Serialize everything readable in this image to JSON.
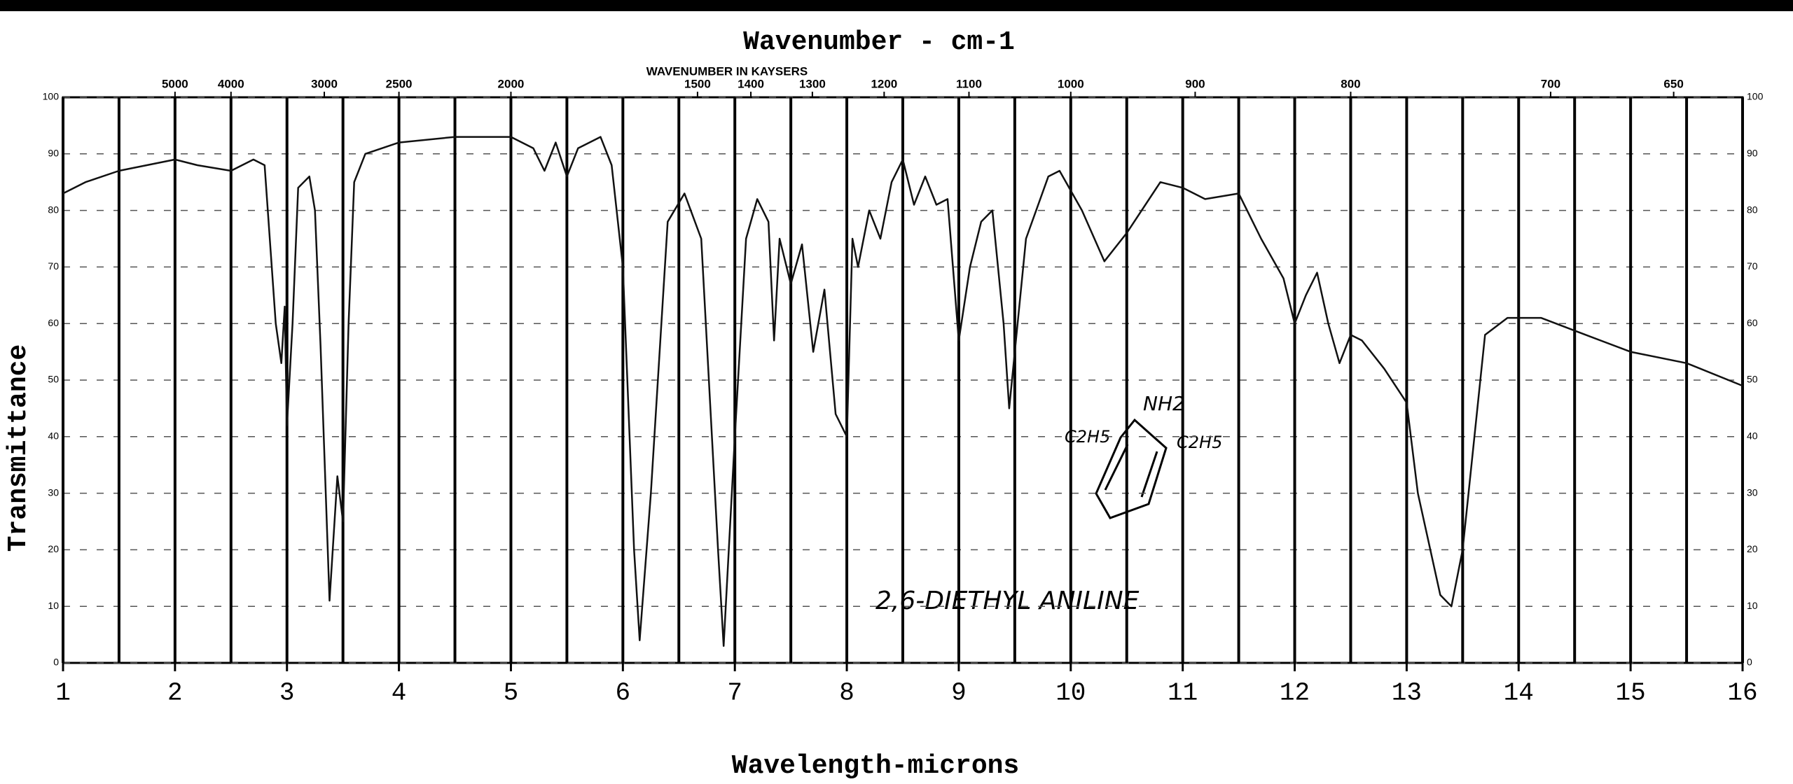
{
  "chart_data": {
    "type": "line",
    "title": "Wavenumber - cm-1",
    "x2label": "WAVENUMBER IN KAYSERS",
    "xlabel": "Wavelength-microns",
    "ylabel": "Transmittance",
    "annotations": [
      "2,6-DIETHYL ANILINE",
      "NH2",
      "C2H5",
      "C2H5"
    ],
    "color": "#111111",
    "x": [
      1.0,
      1.2,
      1.5,
      2.0,
      2.2,
      2.5,
      2.7,
      2.8,
      2.9,
      2.95,
      2.98,
      3.0,
      3.05,
      3.1,
      3.2,
      3.25,
      3.3,
      3.38,
      3.45,
      3.5,
      3.55,
      3.6,
      3.7,
      4.0,
      4.5,
      4.7,
      5.0,
      5.2,
      5.3,
      5.4,
      5.5,
      5.6,
      5.8,
      5.9,
      6.0,
      6.1,
      6.15,
      6.25,
      6.4,
      6.55,
      6.7,
      6.85,
      6.9,
      7.0,
      7.1,
      7.2,
      7.3,
      7.35,
      7.4,
      7.5,
      7.6,
      7.7,
      7.8,
      7.9,
      8.0,
      8.05,
      8.1,
      8.2,
      8.3,
      8.4,
      8.5,
      8.6,
      8.7,
      8.8,
      8.9,
      9.0,
      9.1,
      9.2,
      9.3,
      9.4,
      9.45,
      9.5,
      9.6,
      9.8,
      9.9,
      10.1,
      10.3,
      10.5,
      10.8,
      11.0,
      11.2,
      11.5,
      11.7,
      11.9,
      12.0,
      12.1,
      12.2,
      12.3,
      12.4,
      12.5,
      12.6,
      12.8,
      13.0,
      13.1,
      13.3,
      13.4,
      13.5,
      13.7,
      13.9,
      14.2,
      14.6,
      15.0,
      15.5,
      16.0
    ],
    "values": [
      83,
      85,
      87,
      89,
      88,
      87,
      89,
      88,
      60,
      53,
      63,
      42,
      60,
      84,
      86,
      80,
      56,
      11,
      33,
      25,
      60,
      85,
      90,
      92,
      93,
      93,
      93,
      91,
      87,
      92,
      86,
      91,
      93,
      88,
      70,
      20,
      4,
      30,
      78,
      83,
      75,
      20,
      3,
      40,
      75,
      82,
      78,
      57,
      75,
      67,
      74,
      55,
      66,
      44,
      40,
      75,
      70,
      80,
      75,
      85,
      89,
      81,
      86,
      81,
      82,
      57,
      70,
      78,
      80,
      60,
      45,
      55,
      75,
      86,
      87,
      80,
      71,
      76,
      85,
      84,
      82,
      83,
      75,
      68,
      60,
      65,
      69,
      60,
      53,
      58,
      57,
      52,
      46,
      30,
      12,
      10,
      20,
      58,
      61,
      61,
      58,
      55,
      53,
      49
    ],
    "xlim": [
      1,
      16
    ],
    "xticks": [
      1,
      2,
      3,
      4,
      5,
      6,
      7,
      8,
      9,
      10,
      11,
      12,
      13,
      14,
      15,
      16
    ],
    "x2ticks": [
      5000,
      4000,
      3000,
      2500,
      2000,
      1500,
      1400,
      1300,
      1200,
      1100,
      1000,
      900,
      800,
      700,
      650
    ],
    "ylim": [
      0,
      100
    ],
    "yticks": [
      0,
      10,
      20,
      30,
      40,
      50,
      60,
      70,
      80,
      90,
      100
    ],
    "grid": true
  }
}
